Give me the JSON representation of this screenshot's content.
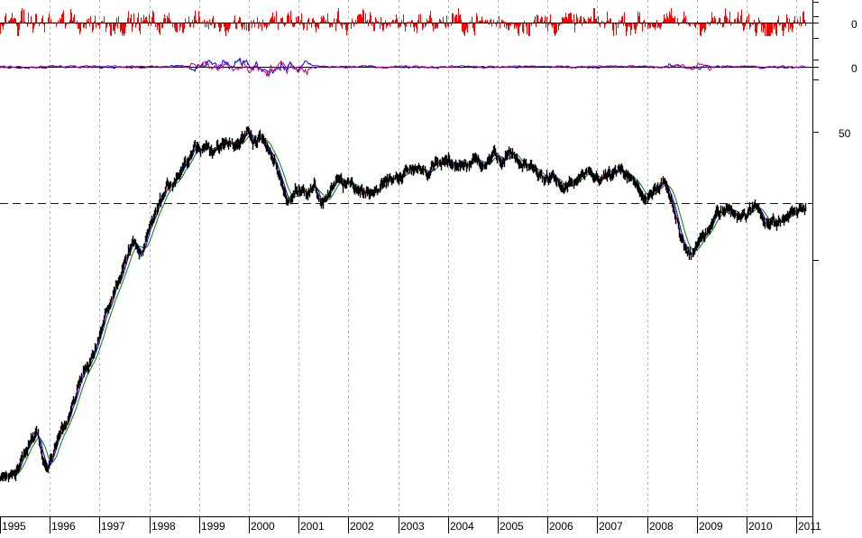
{
  "chart_data": {
    "type": "line",
    "title": "",
    "x_axis": {
      "labels": [
        "1995",
        "1996",
        "1997",
        "1998",
        "1999",
        "2000",
        "2001",
        "2002",
        "2003",
        "2004",
        "2005",
        "2006",
        "2007",
        "2008",
        "2009",
        "2010",
        "2011"
      ],
      "range": [
        1995.0,
        2011.2
      ],
      "grid": true
    },
    "panels": [
      {
        "name": "histogram-indicator",
        "type": "bar",
        "zero_label": "0",
        "color": "#ff0000"
      },
      {
        "name": "oscillator",
        "type": "line",
        "zero_label": "0",
        "colors": [
          "#0000ff",
          "#cc0066"
        ]
      },
      {
        "name": "price",
        "type": "line",
        "y_tick_labels": [
          "50"
        ],
        "y_tick_value": 50,
        "reference_line_value": 25.9,
        "reference_line_color": "#0000cc",
        "series_colors": [
          "#000000",
          "#ff0000",
          "#0000ff",
          "#008000"
        ],
        "price_points": [
          [
            1995.0,
            2.05
          ],
          [
            1995.2,
            2.1
          ],
          [
            1995.4,
            2.4
          ],
          [
            1995.6,
            2.85
          ],
          [
            1995.75,
            3.2
          ],
          [
            1995.85,
            2.5
          ],
          [
            1995.95,
            2.3
          ],
          [
            1996.1,
            2.7
          ],
          [
            1996.3,
            3.4
          ],
          [
            1996.5,
            4.3
          ],
          [
            1996.7,
            5.6
          ],
          [
            1996.9,
            7.2
          ],
          [
            1997.1,
            9.0
          ],
          [
            1997.3,
            11.8
          ],
          [
            1997.45,
            14.3
          ],
          [
            1997.55,
            16.6
          ],
          [
            1997.7,
            18.0
          ],
          [
            1997.85,
            15.8
          ],
          [
            1998.0,
            19.7
          ],
          [
            1998.15,
            24.5
          ],
          [
            1998.3,
            28.0
          ],
          [
            1998.45,
            31.5
          ],
          [
            1998.6,
            35.5
          ],
          [
            1998.75,
            39.5
          ],
          [
            1998.9,
            46.5
          ],
          [
            1999.0,
            43.0
          ],
          [
            1999.2,
            43.8
          ],
          [
            1999.4,
            42.8
          ],
          [
            1999.6,
            44.7
          ],
          [
            1999.8,
            43.8
          ],
          [
            1999.95,
            50.2
          ],
          [
            2000.1,
            46.8
          ],
          [
            2000.25,
            47.5
          ],
          [
            2000.4,
            41.0
          ],
          [
            2000.55,
            37.0
          ],
          [
            2000.7,
            30.0
          ],
          [
            2000.8,
            26.0
          ],
          [
            2000.95,
            29.5
          ],
          [
            2001.1,
            30.6
          ],
          [
            2001.3,
            29.5
          ],
          [
            2001.45,
            26.2
          ],
          [
            2001.6,
            28.5
          ],
          [
            2001.8,
            31.3
          ],
          [
            2002.0,
            30.2
          ],
          [
            2002.2,
            29.7
          ],
          [
            2002.4,
            29.3
          ],
          [
            2002.6,
            30.6
          ],
          [
            2002.8,
            31.7
          ],
          [
            2003.0,
            33.8
          ],
          [
            2003.2,
            34.9
          ],
          [
            2003.4,
            36.0
          ],
          [
            2003.6,
            35.6
          ],
          [
            2003.8,
            36.6
          ],
          [
            2004.0,
            37.3
          ],
          [
            2004.2,
            37.1
          ],
          [
            2004.4,
            37.8
          ],
          [
            2004.6,
            38.2
          ],
          [
            2004.8,
            39.1
          ],
          [
            2004.95,
            40.1
          ],
          [
            2005.1,
            38.2
          ],
          [
            2005.3,
            40.5
          ],
          [
            2005.5,
            36.6
          ],
          [
            2005.7,
            35.0
          ],
          [
            2005.9,
            33.4
          ],
          [
            2006.1,
            32.3
          ],
          [
            2006.3,
            29.3
          ],
          [
            2006.5,
            30.6
          ],
          [
            2006.7,
            32.8
          ],
          [
            2006.9,
            31.7
          ],
          [
            2007.1,
            32.8
          ],
          [
            2007.3,
            33.4
          ],
          [
            2007.5,
            33.8
          ],
          [
            2007.65,
            32.3
          ],
          [
            2007.85,
            28.3
          ],
          [
            2008.0,
            27.3
          ],
          [
            2008.2,
            28.8
          ],
          [
            2008.35,
            30.2
          ],
          [
            2008.5,
            24.8
          ],
          [
            2008.65,
            20.0
          ],
          [
            2008.8,
            17.5
          ],
          [
            2008.95,
            16.7
          ],
          [
            2009.1,
            19.0
          ],
          [
            2009.3,
            21.9
          ],
          [
            2009.5,
            24.1
          ],
          [
            2009.7,
            24.6
          ],
          [
            2009.85,
            24.1
          ],
          [
            2010.0,
            23.5
          ],
          [
            2010.2,
            25.1
          ],
          [
            2010.4,
            22.6
          ],
          [
            2010.6,
            21.5
          ],
          [
            2010.8,
            23.0
          ],
          [
            2011.0,
            24.1
          ],
          [
            2011.2,
            25.0
          ]
        ]
      }
    ]
  }
}
